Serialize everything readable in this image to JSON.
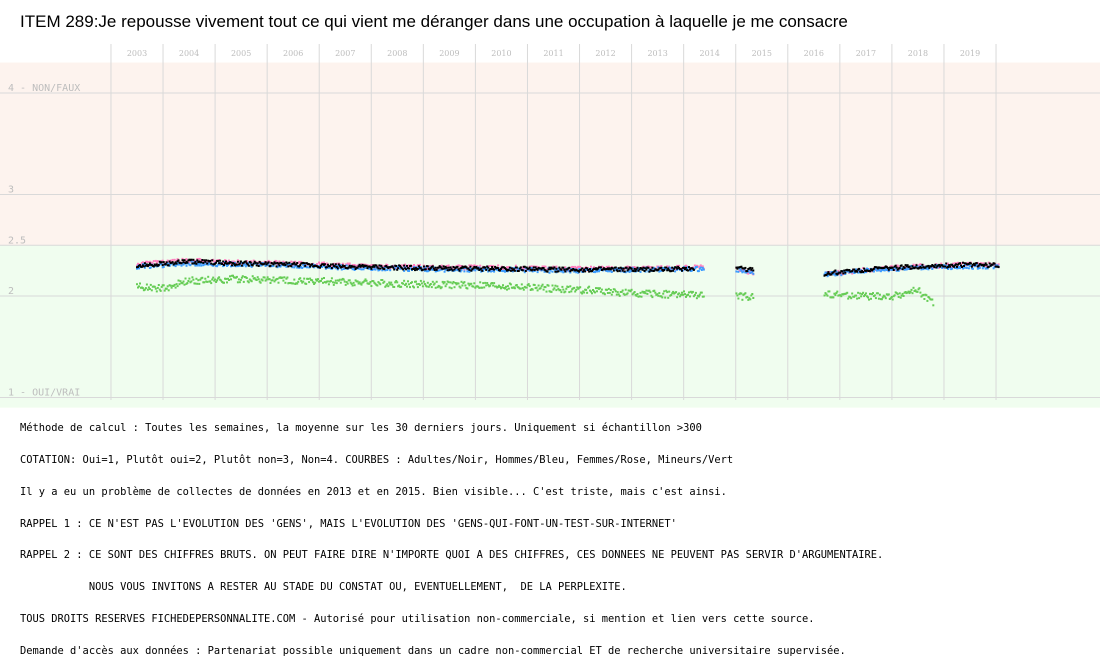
{
  "title": "ITEM 289:Je repousse vivement tout ce qui vient me déranger dans une occupation à laquelle je me consacre",
  "colors": {
    "top_zone": "#fdf3ee",
    "bottom_zone": "#f0fdef",
    "grid": "#d9d9d9",
    "axis_text": "#bdbdbd",
    "adultes": "#000000",
    "hommes": "#3b9cff",
    "femmes": "#ff7fbf",
    "mineurs": "#66cc55"
  },
  "chart_data": {
    "type": "scatter",
    "title": "ITEM 289:Je repousse vivement tout ce qui vient me déranger dans une occupation à laquelle je me consacre",
    "x_tick_labels": [
      "2003",
      "2004",
      "2005",
      "2006",
      "2007",
      "2008",
      "2009",
      "2010",
      "2011",
      "2012",
      "2013",
      "2014",
      "2015",
      "2016",
      "2017",
      "2018",
      "2019"
    ],
    "xlim": [
      2002.5,
      2020.1
    ],
    "y_tick_labels": [
      {
        "value": 4,
        "label": "4 - NON/FAUX"
      },
      {
        "value": 3,
        "label": "3"
      },
      {
        "value": 2.5,
        "label": "2.5"
      },
      {
        "value": 2,
        "label": "2"
      },
      {
        "value": 1,
        "label": "1 - OUI/VRAI"
      }
    ],
    "ylim": [
      1,
      4
    ],
    "zones": [
      {
        "from": 2.5,
        "to": 4.3,
        "color": "top_zone"
      },
      {
        "from": 0.9,
        "to": 2.5,
        "color": "bottom_zone"
      }
    ],
    "gaps": [
      [
        2013.9,
        2014.5
      ],
      [
        2015.0,
        2016.1
      ]
    ],
    "series": [
      {
        "name": "Adultes",
        "color": "adultes",
        "points": [
          [
            2003.0,
            2.3
          ],
          [
            2004.0,
            2.34
          ],
          [
            2005.0,
            2.32
          ],
          [
            2006.0,
            2.31
          ],
          [
            2007.0,
            2.29
          ],
          [
            2008.0,
            2.28
          ],
          [
            2009.0,
            2.27
          ],
          [
            2010.0,
            2.27
          ],
          [
            2011.0,
            2.26
          ],
          [
            2012.0,
            2.26
          ],
          [
            2012.8,
            2.26
          ],
          [
            2013.7,
            2.27
          ],
          [
            2014.4,
            2.3
          ],
          [
            2014.85,
            2.25
          ],
          [
            2016.2,
            2.22
          ],
          [
            2017.0,
            2.26
          ],
          [
            2018.0,
            2.29
          ],
          [
            2019.0,
            2.31
          ],
          [
            2019.55,
            2.3
          ]
        ]
      },
      {
        "name": "Hommes",
        "color": "hommes",
        "points": [
          [
            2003.0,
            2.29
          ],
          [
            2004.0,
            2.32
          ],
          [
            2005.0,
            2.31
          ],
          [
            2006.0,
            2.3
          ],
          [
            2007.0,
            2.28
          ],
          [
            2008.0,
            2.27
          ],
          [
            2009.0,
            2.26
          ],
          [
            2010.0,
            2.26
          ],
          [
            2011.0,
            2.25
          ],
          [
            2012.0,
            2.25
          ],
          [
            2012.8,
            2.26
          ],
          [
            2014.4,
            2.27
          ],
          [
            2014.85,
            2.23
          ],
          [
            2016.2,
            2.21
          ],
          [
            2017.0,
            2.25
          ],
          [
            2018.0,
            2.28
          ],
          [
            2019.0,
            2.29
          ],
          [
            2019.55,
            2.29
          ]
        ]
      },
      {
        "name": "Femmes",
        "color": "femmes",
        "points": [
          [
            2003.0,
            2.31
          ],
          [
            2004.0,
            2.35
          ],
          [
            2005.0,
            2.33
          ],
          [
            2006.0,
            2.32
          ],
          [
            2007.0,
            2.3
          ],
          [
            2008.0,
            2.29
          ],
          [
            2009.0,
            2.28
          ],
          [
            2010.0,
            2.28
          ],
          [
            2011.0,
            2.27
          ],
          [
            2012.0,
            2.27
          ],
          [
            2012.8,
            2.27
          ],
          [
            2014.4,
            2.29
          ],
          [
            2014.85,
            2.22
          ],
          [
            2016.2,
            2.21
          ],
          [
            2017.0,
            2.26
          ],
          [
            2018.0,
            2.29
          ],
          [
            2019.0,
            2.31
          ],
          [
            2019.55,
            2.31
          ]
        ]
      },
      {
        "name": "Mineurs",
        "color": "mineurs",
        "points": [
          [
            2003.0,
            2.1
          ],
          [
            2003.5,
            2.07
          ],
          [
            2004.0,
            2.15
          ],
          [
            2005.0,
            2.17
          ],
          [
            2006.0,
            2.15
          ],
          [
            2007.0,
            2.14
          ],
          [
            2008.0,
            2.12
          ],
          [
            2009.0,
            2.11
          ],
          [
            2010.0,
            2.1
          ],
          [
            2011.0,
            2.07
          ],
          [
            2012.0,
            2.05
          ],
          [
            2012.2,
            2.03
          ],
          [
            2014.4,
            2.0
          ],
          [
            2014.85,
            1.99
          ],
          [
            2016.2,
            2.02
          ],
          [
            2017.0,
            2.0
          ],
          [
            2017.5,
            1.99
          ],
          [
            2018.0,
            2.06
          ],
          [
            2018.3,
            1.92
          ]
        ]
      }
    ]
  },
  "notes": [
    "Méthode de calcul : Toutes les semaines, la moyenne sur les 30 derniers jours. Uniquement si échantillon >300",
    "COTATION: Oui=1, Plutôt oui=2, Plutôt non=3, Non=4. COURBES : Adultes/Noir, Hommes/Bleu, Femmes/Rose, Mineurs/Vert",
    "Il y a eu un problème de collectes de données en 2013 et en 2015. Bien visible... C'est triste, mais c'est ainsi.",
    "RAPPEL 1 : CE N'EST PAS L'EVOLUTION DES 'GENS', MAIS L'EVOLUTION DES 'GENS-QUI-FONT-UN-TEST-SUR-INTERNET'",
    "RAPPEL 2 : CE SONT DES CHIFFRES BRUTS. ON PEUT FAIRE DIRE N'IMPORTE QUOI A DES CHIFFRES, CES DONNEES NE PEUVENT PAS SERVIR D'ARGUMENTAIRE.",
    "           NOUS VOUS INVITONS A RESTER AU STADE DU CONSTAT OU, EVENTUELLEMENT,  DE LA PERPLEXITE.",
    "TOUS DROITS RESERVES FICHEDEPERSONNALITE.COM - Autorisé pour utilisation non-commerciale, si mention et lien vers cette source.",
    "Demande d'accès aux données : Partenariat possible uniquement dans un cadre non-commercial ET de recherche universitaire supervisée."
  ]
}
